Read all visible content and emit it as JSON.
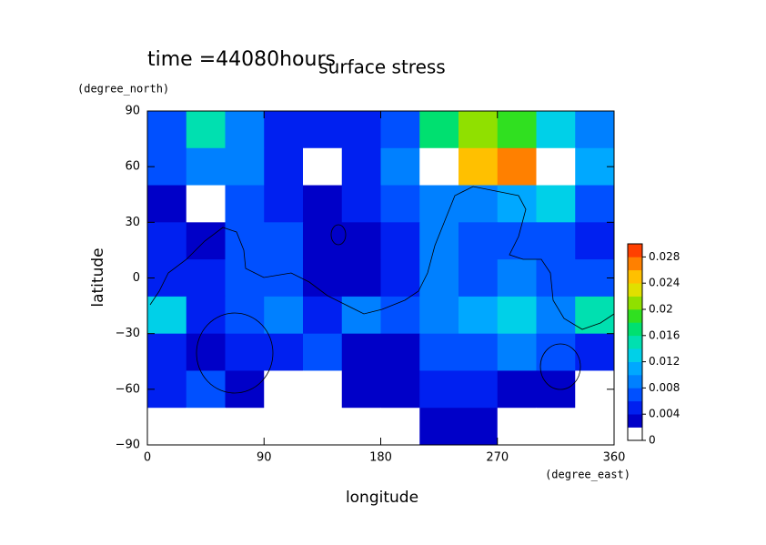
{
  "chart_data": {
    "type": "contour",
    "title": "surface stress",
    "subtitle": "time =44080hours",
    "x_label": "longitude",
    "x_units": "(degree_east)",
    "y_label": "latitude",
    "y_units": "(degree_north)",
    "x": [
      15,
      45,
      75,
      105,
      135,
      165,
      195,
      225,
      255,
      285,
      315,
      345
    ],
    "y": [
      80,
      60,
      40,
      20,
      0,
      -20,
      -40,
      -60,
      -80
    ],
    "z": [
      [
        0.006,
        0.014,
        0.008,
        0.004,
        0.004,
        0.005,
        0.006,
        0.016,
        0.02,
        0.018,
        0.012,
        0.008
      ],
      [
        0.006,
        0.008,
        0.008,
        0.004,
        0.001,
        0.004,
        0.008,
        0.032,
        0.024,
        0.026,
        0.032,
        0.01
      ],
      [
        0.002,
        0.001,
        0.006,
        0.004,
        0.002,
        0.004,
        0.006,
        0.008,
        0.008,
        0.01,
        0.012,
        0.006
      ],
      [
        0.004,
        0.003,
        0.006,
        0.006,
        0.003,
        0.002,
        0.004,
        0.008,
        0.006,
        0.006,
        0.006,
        0.004
      ],
      [
        0.004,
        0.004,
        0.006,
        0.006,
        0.002,
        0.002,
        0.004,
        0.008,
        0.006,
        0.008,
        0.006,
        0.006
      ],
      [
        0.012,
        0.004,
        0.006,
        0.008,
        0.004,
        0.008,
        0.006,
        0.008,
        0.01,
        0.012,
        0.008,
        0.014
      ],
      [
        0.004,
        0.002,
        0.004,
        0.004,
        0.006,
        0.003,
        0.002,
        0.006,
        0.006,
        0.008,
        0.006,
        0.004
      ],
      [
        0.004,
        0.006,
        0.002,
        0.001,
        0.001,
        0.002,
        0.002,
        0.004,
        0.004,
        0.002,
        0.002,
        0.001
      ],
      [
        0.001,
        0.001,
        0.001,
        0.001,
        0.001,
        0.001,
        0.001,
        0.003,
        0.003,
        0.001,
        0.001,
        0.001
      ]
    ],
    "xlim": [
      0,
      360
    ],
    "ylim": [
      -90,
      90
    ],
    "xticks": [
      0,
      90,
      180,
      270,
      360
    ],
    "yticks": [
      {
        "value": -90,
        "label": "−90"
      },
      {
        "value": -60,
        "label": "−60"
      },
      {
        "value": -30,
        "label": "−30"
      },
      0,
      30,
      60,
      90
    ],
    "levels": [
      0,
      0.002,
      0.004,
      0.006,
      0.008,
      0.01,
      0.012,
      0.014,
      0.016,
      0.018,
      0.02,
      0.022,
      0.024,
      0.026,
      0.028,
      0.03
    ],
    "colors": [
      "#ffffff",
      "#0000c8",
      "#0020f0",
      "#0050ff",
      "#0080ff",
      "#00a8ff",
      "#00d0e8",
      "#00e0b0",
      "#00e070",
      "#30e020",
      "#90e000",
      "#e0e000",
      "#ffc000",
      "#ff8000",
      "#ff4000"
    ],
    "over_color": "#ffffff",
    "cbar_ticks": [
      0,
      0.004,
      0.008,
      0.012,
      0.016,
      0.02,
      0.024,
      0.028
    ]
  }
}
